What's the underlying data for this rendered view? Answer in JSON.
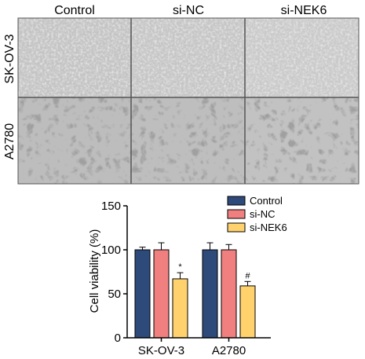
{
  "micrographs": {
    "columns": [
      "Control",
      "si-NC",
      "si-NEK6"
    ],
    "rows": [
      "SK-OV-3",
      "A2780"
    ]
  },
  "chart_data": {
    "type": "bar",
    "ylabel": "Cell viability (%)",
    "ylim": [
      0,
      150
    ],
    "yticks": [
      "0",
      "50",
      "100",
      "150"
    ],
    "categories": [
      "SK-OV-3",
      "A2780"
    ],
    "legend_position": "top-right",
    "series": [
      {
        "name": "Control",
        "color": "#2E4A7A",
        "values": [
          100,
          100
        ],
        "errors": [
          3,
          8
        ],
        "annotations": [
          "",
          ""
        ]
      },
      {
        "name": "si-NC",
        "color": "#F08080",
        "values": [
          100,
          100
        ],
        "errors": [
          8,
          6
        ],
        "annotations": [
          "",
          ""
        ]
      },
      {
        "name": "si-NEK6",
        "color": "#FFD26E",
        "values": [
          67,
          59
        ],
        "errors": [
          7,
          5
        ],
        "annotations": [
          "*",
          "#"
        ]
      }
    ]
  }
}
